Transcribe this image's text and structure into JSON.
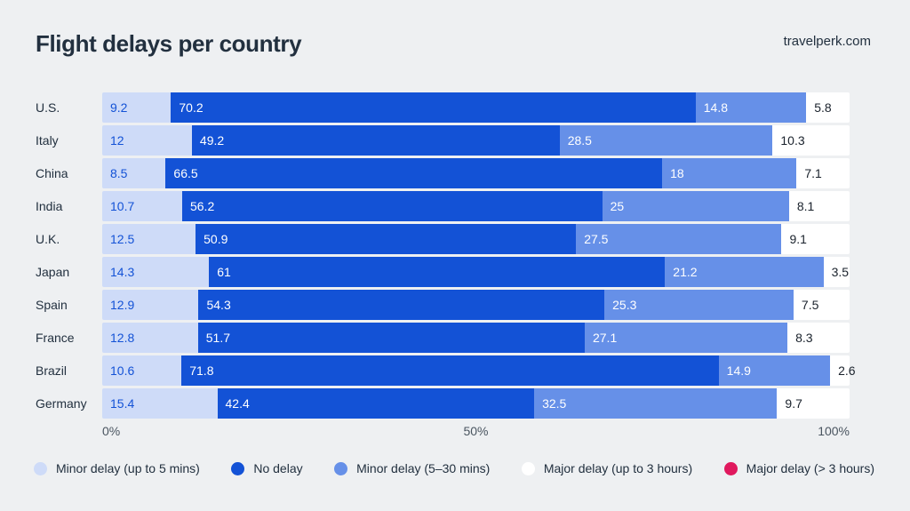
{
  "page": {
    "background_color": "#eef0f2"
  },
  "header": {
    "title": "Flight delays per country",
    "source": "travelperk.com"
  },
  "chart_data": {
    "type": "bar",
    "orientation": "horizontal",
    "stacked": true,
    "title": "Flight delays per country",
    "units": "percent",
    "categories": [
      "U.S.",
      "Italy",
      "China",
      "India",
      "U.K.",
      "Japan",
      "Spain",
      "France",
      "Brazil",
      "Germany"
    ],
    "series": [
      {
        "name": "Minor delay (up to 5 mins)",
        "color": "#cedbf8",
        "label_color": "#1352d6",
        "values": [
          9.2,
          12,
          8.5,
          10.7,
          12.5,
          14.3,
          12.9,
          12.8,
          10.6,
          15.4
        ]
      },
      {
        "name": "No delay",
        "color": "#1352d6",
        "label_color": "#ffffff",
        "values": [
          70.2,
          49.2,
          66.5,
          56.2,
          50.9,
          61,
          54.3,
          51.7,
          71.8,
          42.4
        ]
      },
      {
        "name": "Minor delay (5–30 mins)",
        "color": "#6690e8",
        "label_color": "#ffffff",
        "values": [
          14.8,
          28.5,
          18,
          25,
          27.5,
          21.2,
          25.3,
          27.1,
          14.9,
          32.5
        ]
      },
      {
        "name": "Major delay (up to 3 hours)",
        "color": "#ffffff",
        "label_color": "#1a222c",
        "values": [
          5.8,
          10.3,
          7.1,
          8.1,
          9.1,
          3.5,
          7.5,
          8.3,
          2.6,
          9.7
        ]
      },
      {
        "name": "Major delay (> 3 hours)",
        "color": "#e0195e",
        "label_color": "#ffffff",
        "values": [
          0,
          0,
          0,
          0,
          0,
          0,
          0,
          0,
          0,
          0
        ]
      }
    ],
    "x_axis": {
      "ticks": [
        "0%",
        "50%",
        "100%"
      ],
      "range": [
        0,
        100
      ]
    },
    "legend_position": "bottom",
    "grid": false
  }
}
